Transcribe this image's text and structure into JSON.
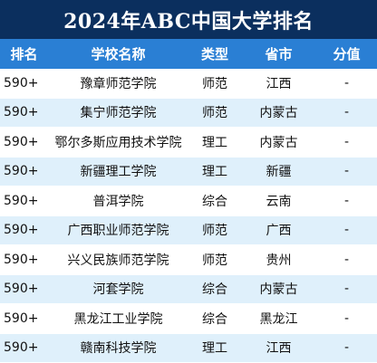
{
  "title": "2024年ABC中国大学排名",
  "headers": {
    "rank": "排名",
    "school": "学校名称",
    "type": "类型",
    "province": "省市",
    "score": "分值"
  },
  "rows": [
    {
      "rank": "590+",
      "school": "豫章师范学院",
      "type": "师范",
      "province": "江西",
      "score": "-"
    },
    {
      "rank": "590+",
      "school": "集宁师范学院",
      "type": "师范",
      "province": "内蒙古",
      "score": "-"
    },
    {
      "rank": "590+",
      "school": "鄂尔多斯应用技术学院",
      "type": "理工",
      "province": "内蒙古",
      "score": "-"
    },
    {
      "rank": "590+",
      "school": "新疆理工学院",
      "type": "理工",
      "province": "新疆",
      "score": "-"
    },
    {
      "rank": "590+",
      "school": "普洱学院",
      "type": "综合",
      "province": "云南",
      "score": "-"
    },
    {
      "rank": "590+",
      "school": "广西职业师范学院",
      "type": "师范",
      "province": "广西",
      "score": "-"
    },
    {
      "rank": "590+",
      "school": "兴义民族师范学院",
      "type": "师范",
      "province": "贵州",
      "score": "-"
    },
    {
      "rank": "590+",
      "school": "河套学院",
      "type": "综合",
      "province": "内蒙古",
      "score": "-"
    },
    {
      "rank": "590+",
      "school": "黑龙江工业学院",
      "type": "综合",
      "province": "黑龙江",
      "score": "-"
    },
    {
      "rank": "590+",
      "school": "赣南科技学院",
      "type": "理工",
      "province": "江西",
      "score": "-"
    }
  ]
}
